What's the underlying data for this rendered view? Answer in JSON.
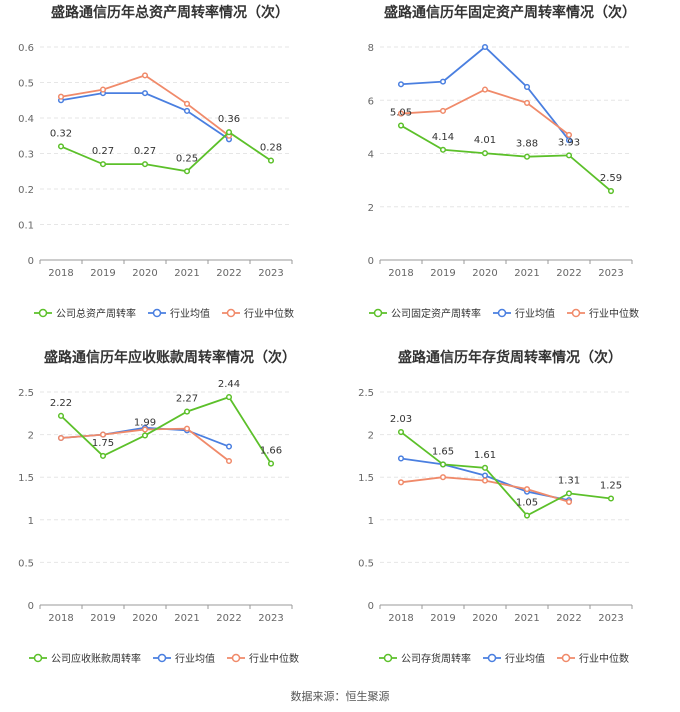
{
  "legend": {
    "industry_avg": "行业均值",
    "industry_median": "行业中位数"
  },
  "colors": {
    "company": "#5cc02a",
    "industry_avg": "#4a7fe0",
    "industry_median": "#f08a6a",
    "grid": "#e6e6e6",
    "axis": "#999999",
    "title": "#333333"
  },
  "footer": "数据来源：恒生聚源",
  "chart_data": [
    {
      "type": "line",
      "title": "盛路通信历年总资产周转率情况（次）",
      "x": [
        "2018",
        "2019",
        "2020",
        "2021",
        "2022",
        "2023"
      ],
      "ylim": [
        0,
        0.6
      ],
      "yticks": [
        "0",
        "0.1",
        "0.2",
        "0.3",
        "0.4",
        "0.5",
        "0.6"
      ],
      "series": [
        {
          "name": "公司总资产周转率",
          "values": [
            0.32,
            0.27,
            0.27,
            0.25,
            0.36,
            0.28
          ],
          "labels": [
            "0.32",
            "0.27",
            "0.27",
            "0.25",
            "0.36",
            "0.28"
          ]
        },
        {
          "name": "行业均值",
          "values": [
            0.45,
            0.47,
            0.47,
            0.42,
            0.34,
            null
          ]
        },
        {
          "name": "行业中位数",
          "values": [
            0.46,
            0.48,
            0.52,
            0.44,
            0.35,
            null
          ]
        }
      ],
      "grid": true,
      "legend_position": "bottom"
    },
    {
      "type": "line",
      "title": "盛路通信历年固定资产周转率情况（次）",
      "x": [
        "2018",
        "2019",
        "2020",
        "2021",
        "2022",
        "2023"
      ],
      "ylim": [
        0,
        8
      ],
      "yticks": [
        "0",
        "2",
        "4",
        "6",
        "8"
      ],
      "series": [
        {
          "name": "公司固定资产周转率",
          "values": [
            5.05,
            4.14,
            4.01,
            3.88,
            3.93,
            2.59
          ],
          "labels": [
            "5.05",
            "4.14",
            "4.01",
            "3.88",
            "3.93",
            "2.59"
          ]
        },
        {
          "name": "行业均值",
          "values": [
            6.6,
            6.7,
            8.0,
            6.5,
            4.5,
            null
          ]
        },
        {
          "name": "行业中位数",
          "values": [
            5.5,
            5.6,
            6.4,
            5.9,
            4.7,
            null
          ]
        }
      ],
      "grid": true,
      "legend_position": "bottom"
    },
    {
      "type": "line",
      "title": "盛路通信历年应收账款周转率情况（次）",
      "x": [
        "2018",
        "2019",
        "2020",
        "2021",
        "2022",
        "2023"
      ],
      "ylim": [
        0,
        2.5
      ],
      "yticks": [
        "0",
        "0.5",
        "1",
        "1.5",
        "2",
        "2.5"
      ],
      "series": [
        {
          "name": "公司应收账款周转率",
          "values": [
            2.22,
            1.75,
            1.99,
            2.27,
            2.44,
            1.66
          ],
          "labels": [
            "2.22",
            "1.75",
            "1.99",
            "2.27",
            "2.44",
            "1.66"
          ]
        },
        {
          "name": "行业均值",
          "values": [
            1.96,
            2.0,
            2.08,
            2.05,
            1.86,
            null
          ]
        },
        {
          "name": "行业中位数",
          "values": [
            1.96,
            2.0,
            2.06,
            2.07,
            1.69,
            null
          ]
        }
      ],
      "grid": true,
      "legend_position": "bottom"
    },
    {
      "type": "line",
      "title": "盛路通信历年存货周转率情况（次）",
      "x": [
        "2018",
        "2019",
        "2020",
        "2021",
        "2022",
        "2023"
      ],
      "ylim": [
        0,
        2.5
      ],
      "yticks": [
        "0",
        "0.5",
        "1",
        "1.5",
        "2",
        "2.5"
      ],
      "series": [
        {
          "name": "公司存货周转率",
          "values": [
            2.03,
            1.65,
            1.61,
            1.05,
            1.31,
            1.25
          ],
          "labels": [
            "2.03",
            "1.65",
            "1.61",
            "1.05",
            "1.31",
            "1.25"
          ]
        },
        {
          "name": "行业均值",
          "values": [
            1.72,
            1.65,
            1.52,
            1.33,
            1.23,
            null
          ]
        },
        {
          "name": "行业中位数",
          "values": [
            1.44,
            1.5,
            1.46,
            1.36,
            1.21,
            null
          ]
        }
      ],
      "grid": true,
      "legend_position": "bottom"
    }
  ]
}
